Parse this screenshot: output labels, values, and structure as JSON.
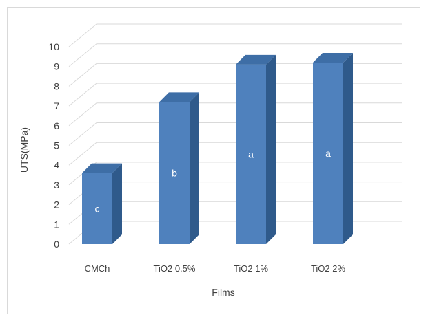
{
  "chart_data": {
    "type": "bar",
    "style": "3d-column",
    "categories": [
      "CMCh",
      "TiO2  0.5%",
      "TiO2  1%",
      "TiO2  2%"
    ],
    "values": [
      3.6,
      7.2,
      9.1,
      9.2
    ],
    "bar_labels": [
      "c",
      "b",
      "a",
      "a"
    ],
    "xlabel": "Films",
    "ylabel": "UTS(MPa)",
    "ylim": [
      0,
      10
    ],
    "yticks": [
      0,
      1,
      2,
      3,
      4,
      5,
      6,
      7,
      8,
      9,
      10
    ],
    "grid": true,
    "legend": "none",
    "colors": {
      "front": "#4f81bd",
      "side": "#2f5a8b",
      "top": "#3e6ea6",
      "grid": "#d9d9d9",
      "text": "#404040"
    }
  }
}
